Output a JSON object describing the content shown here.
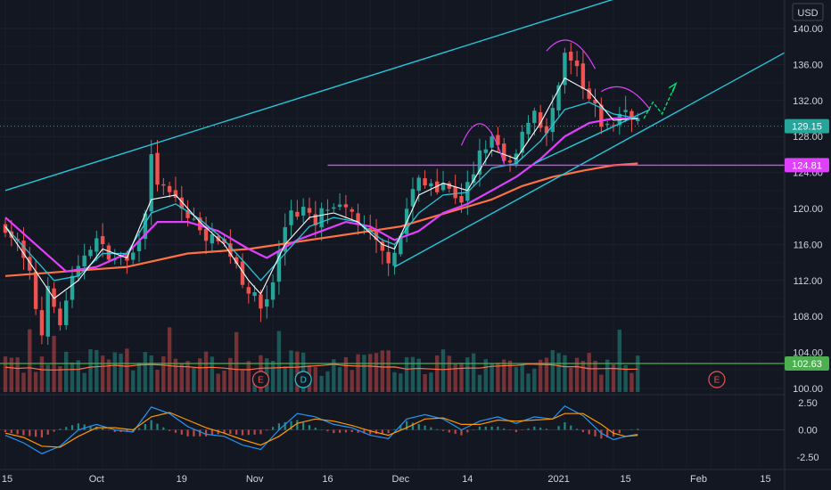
{
  "currency": "USD",
  "chart_data": {
    "type": "candlestick",
    "colors": {
      "background": "#131722",
      "grid": "#1e2230",
      "up": "#26a69a",
      "down": "#ef5350",
      "ema_short": "#ffffff",
      "ema_mid": "#26c6da",
      "sma_50": "#e040fb",
      "sma_200": "#ff7043",
      "trendline": "#26c6da",
      "horizontal_level": "#e040fb",
      "volume_level": "#4caf50",
      "volume_ma": "#ff7043",
      "macd_line": "#2196f3",
      "signal_line": "#ff9800",
      "projection": "#00e676"
    },
    "price_axis": {
      "ylim": [
        99,
        143
      ],
      "ticks": [
        "140.00",
        "136.00",
        "132.00",
        "128.00",
        "124.00",
        "120.00",
        "116.00",
        "112.00",
        "108.00",
        "104.00",
        "100.00"
      ],
      "tick_values": [
        140,
        136,
        132,
        128,
        124,
        120,
        116,
        112,
        108,
        104,
        100
      ]
    },
    "x_axis": {
      "xlim": [
        0,
        152
      ],
      "ticks": [
        {
          "label": "15",
          "index": 0
        },
        {
          "label": "Oct",
          "index": 15
        },
        {
          "label": "19",
          "index": 29
        },
        {
          "label": "Nov",
          "index": 41
        },
        {
          "label": "16",
          "index": 53
        },
        {
          "label": "Dec",
          "index": 65
        },
        {
          "label": "14",
          "index": 76
        },
        {
          "label": "2021",
          "index": 91
        },
        {
          "label": "15",
          "index": 102
        },
        {
          "label": "Feb",
          "index": 114
        },
        {
          "label": "15",
          "index": 125
        }
      ]
    },
    "price_path": [
      [
        0,
        118
      ],
      [
        2,
        116
      ],
      [
        4,
        112.5
      ],
      [
        5,
        109
      ],
      [
        6,
        106
      ],
      [
        7,
        112
      ],
      [
        8,
        108.5
      ],
      [
        9,
        107
      ],
      [
        10,
        110
      ],
      [
        11,
        112
      ],
      [
        12,
        113
      ],
      [
        13,
        115
      ],
      [
        14,
        116
      ],
      [
        15,
        116.5
      ],
      [
        16,
        115.5
      ],
      [
        17,
        115
      ],
      [
        18,
        114
      ],
      [
        19,
        115
      ],
      [
        20,
        114
      ],
      [
        21,
        115
      ],
      [
        22,
        117
      ],
      [
        23,
        120
      ],
      [
        24,
        125.5
      ],
      [
        25,
        123
      ],
      [
        26,
        122
      ],
      [
        27,
        121.5
      ],
      [
        28,
        121
      ],
      [
        29,
        120
      ],
      [
        30,
        119
      ],
      [
        31,
        118.5
      ],
      [
        32,
        118
      ],
      [
        33,
        117
      ],
      [
        34,
        116.5
      ],
      [
        35,
        117
      ],
      [
        36,
        116
      ],
      [
        37,
        115
      ],
      [
        38,
        114
      ],
      [
        39,
        112
      ],
      [
        40,
        111
      ],
      [
        41,
        110
      ],
      [
        42,
        109
      ],
      [
        43,
        110
      ],
      [
        44,
        112
      ],
      [
        45,
        115
      ],
      [
        46,
        118
      ],
      [
        47,
        120
      ],
      [
        48,
        119.5
      ],
      [
        49,
        120
      ],
      [
        50,
        119
      ],
      [
        51,
        118
      ],
      [
        52,
        119.5
      ],
      [
        53,
        120
      ],
      [
        54,
        119.5
      ],
      [
        55,
        120
      ],
      [
        56,
        119.5
      ],
      [
        57,
        119.5
      ],
      [
        58,
        118.5
      ],
      [
        59,
        117.5
      ],
      [
        60,
        117
      ],
      [
        61,
        116
      ],
      [
        62,
        115
      ],
      [
        63,
        114.5
      ],
      [
        64,
        115.5
      ],
      [
        65,
        117
      ],
      [
        66,
        120
      ],
      [
        67,
        122
      ],
      [
        68,
        123
      ],
      [
        69,
        122.5
      ],
      [
        70,
        123
      ],
      [
        71,
        122.5
      ],
      [
        72,
        123
      ],
      [
        73,
        122
      ],
      [
        74,
        121.5
      ],
      [
        75,
        121
      ],
      [
        76,
        122.5
      ],
      [
        77,
        123.5
      ],
      [
        78,
        126
      ],
      [
        79,
        127
      ],
      [
        80,
        127.5
      ],
      [
        81,
        127
      ],
      [
        82,
        125
      ],
      [
        83,
        124.5
      ],
      [
        84,
        126
      ],
      [
        85,
        128
      ],
      [
        86,
        130
      ],
      [
        87,
        131
      ],
      [
        88,
        129.5
      ],
      [
        89,
        128
      ],
      [
        90,
        131
      ],
      [
        91,
        133
      ],
      [
        92,
        137
      ],
      [
        93,
        136
      ],
      [
        94,
        135.5
      ],
      [
        95,
        133
      ],
      [
        96,
        132
      ],
      [
        97,
        131
      ],
      [
        98,
        129.5
      ],
      [
        99,
        129
      ],
      [
        100,
        129.5
      ],
      [
        101,
        130.5
      ],
      [
        102,
        131
      ],
      [
        103,
        130.5
      ],
      [
        104,
        129.8
      ]
    ],
    "ema_short": [
      [
        0,
        118
      ],
      [
        4,
        114
      ],
      [
        8,
        110
      ],
      [
        12,
        112
      ],
      [
        16,
        115.5
      ],
      [
        20,
        114.5
      ],
      [
        24,
        121
      ],
      [
        28,
        121.5
      ],
      [
        32,
        118.5
      ],
      [
        36,
        116
      ],
      [
        40,
        112
      ],
      [
        42,
        110.5
      ],
      [
        46,
        116
      ],
      [
        50,
        119
      ],
      [
        54,
        119.5
      ],
      [
        58,
        118.5
      ],
      [
        62,
        116
      ],
      [
        64,
        115.5
      ],
      [
        68,
        121.5
      ],
      [
        72,
        122.8
      ],
      [
        76,
        122
      ],
      [
        80,
        126.5
      ],
      [
        84,
        125.5
      ],
      [
        88,
        129.5
      ],
      [
        92,
        134.5
      ],
      [
        96,
        133
      ],
      [
        100,
        129.8
      ],
      [
        104,
        130
      ]
    ],
    "ema_mid": [
      [
        0,
        118
      ],
      [
        4,
        115
      ],
      [
        8,
        112
      ],
      [
        12,
        112.5
      ],
      [
        16,
        115
      ],
      [
        20,
        115
      ],
      [
        24,
        119.5
      ],
      [
        28,
        120.5
      ],
      [
        32,
        118.8
      ],
      [
        36,
        116.5
      ],
      [
        40,
        113.5
      ],
      [
        42,
        112
      ],
      [
        46,
        115
      ],
      [
        50,
        118
      ],
      [
        54,
        119
      ],
      [
        58,
        118.5
      ],
      [
        62,
        116.5
      ],
      [
        64,
        116
      ],
      [
        68,
        119.5
      ],
      [
        72,
        121.5
      ],
      [
        76,
        121.8
      ],
      [
        80,
        124.5
      ],
      [
        84,
        125
      ],
      [
        88,
        127.5
      ],
      [
        92,
        131
      ],
      [
        96,
        131.8
      ],
      [
        100,
        130.5
      ],
      [
        104,
        130
      ]
    ],
    "sma_50": [
      [
        0,
        119
      ],
      [
        5,
        116
      ],
      [
        10,
        113
      ],
      [
        15,
        113.5
      ],
      [
        20,
        115
      ],
      [
        25,
        118.5
      ],
      [
        30,
        118.5
      ],
      [
        35,
        117.5
      ],
      [
        40,
        115.5
      ],
      [
        43,
        114.5
      ],
      [
        48,
        116.5
      ],
      [
        52,
        117.5
      ],
      [
        56,
        118.5
      ],
      [
        60,
        118
      ],
      [
        64,
        116.5
      ],
      [
        68,
        117.5
      ],
      [
        72,
        119.5
      ],
      [
        76,
        120.5
      ],
      [
        80,
        122
      ],
      [
        84,
        123.5
      ],
      [
        88,
        125.5
      ],
      [
        92,
        128
      ],
      [
        96,
        129.5
      ],
      [
        100,
        130
      ],
      [
        104,
        130
      ]
    ],
    "sma_200": [
      [
        0,
        112.5
      ],
      [
        10,
        113
      ],
      [
        20,
        113.5
      ],
      [
        30,
        115
      ],
      [
        40,
        115.5
      ],
      [
        50,
        116.5
      ],
      [
        60,
        117.5
      ],
      [
        65,
        118
      ],
      [
        70,
        119
      ],
      [
        75,
        120
      ],
      [
        80,
        121
      ],
      [
        85,
        122.5
      ],
      [
        90,
        123.5
      ],
      [
        95,
        124.2
      ],
      [
        100,
        124.8
      ],
      [
        104,
        125
      ]
    ],
    "trendlines": [
      {
        "from": [
          0,
          122
        ],
        "to": [
          120,
          147.5
        ]
      },
      {
        "from": [
          64,
          113.5
        ],
        "to": [
          130,
          138
        ]
      },
      {
        "from": [
          87,
          125
        ],
        "to": [
          106,
          131
        ]
      }
    ],
    "horizontal_level": {
      "price": 124.81,
      "label": "124.81"
    },
    "last_price": {
      "price": 129.15,
      "label": "129.15"
    },
    "volume_level": {
      "label": "102.63"
    },
    "projection": [
      [
        105,
        130
      ],
      [
        106.5,
        131.8
      ],
      [
        108,
        130.5
      ],
      [
        110,
        133.5
      ]
    ],
    "event_markers": [
      {
        "label": "E",
        "index": 42,
        "color": "#ef5350"
      },
      {
        "label": "D",
        "index": 49,
        "color": "#26c6da"
      },
      {
        "label": "E",
        "index": 117,
        "color": "#ef5350"
      }
    ],
    "macd_axis": {
      "ylim": [
        -3.2,
        3.2
      ],
      "ticks": [
        "2.50",
        "0.00",
        "-2.50"
      ],
      "tick_values": [
        2.5,
        0,
        -2.5
      ]
    },
    "macd_line": [
      [
        0,
        -0.5
      ],
      [
        3,
        -1.2
      ],
      [
        6,
        -2.2
      ],
      [
        9,
        -1.5
      ],
      [
        12,
        0
      ],
      [
        15,
        0.5
      ],
      [
        18,
        0
      ],
      [
        21,
        -0.2
      ],
      [
        24,
        2.1
      ],
      [
        27,
        1.5
      ],
      [
        30,
        0.3
      ],
      [
        33,
        -0.4
      ],
      [
        36,
        -0.6
      ],
      [
        39,
        -1.4
      ],
      [
        42,
        -1.8
      ],
      [
        45,
        0
      ],
      [
        48,
        1.5
      ],
      [
        51,
        1.2
      ],
      [
        54,
        0.5
      ],
      [
        57,
        0.2
      ],
      [
        60,
        -0.5
      ],
      [
        63,
        -0.8
      ],
      [
        66,
        1
      ],
      [
        69,
        1.4
      ],
      [
        72,
        1
      ],
      [
        75,
        0
      ],
      [
        78,
        0.8
      ],
      [
        81,
        1.2
      ],
      [
        84,
        0.6
      ],
      [
        87,
        1.2
      ],
      [
        90,
        1
      ],
      [
        92,
        2.2
      ],
      [
        95,
        1.3
      ],
      [
        98,
        -0.3
      ],
      [
        100,
        -0.9
      ],
      [
        102,
        -0.6
      ],
      [
        104,
        -0.4
      ]
    ],
    "signal_line": [
      [
        0,
        -0.3
      ],
      [
        3,
        -0.7
      ],
      [
        6,
        -1.5
      ],
      [
        9,
        -1.6
      ],
      [
        12,
        -0.6
      ],
      [
        15,
        0.2
      ],
      [
        18,
        0.2
      ],
      [
        21,
        0
      ],
      [
        24,
        1.2
      ],
      [
        27,
        1.6
      ],
      [
        30,
        0.9
      ],
      [
        33,
        0.2
      ],
      [
        36,
        -0.3
      ],
      [
        39,
        -0.9
      ],
      [
        42,
        -1.4
      ],
      [
        45,
        -0.6
      ],
      [
        48,
        0.6
      ],
      [
        51,
        1
      ],
      [
        54,
        0.8
      ],
      [
        57,
        0.4
      ],
      [
        60,
        -0.1
      ],
      [
        63,
        -0.5
      ],
      [
        66,
        0.2
      ],
      [
        69,
        1
      ],
      [
        72,
        1.1
      ],
      [
        75,
        0.5
      ],
      [
        78,
        0.5
      ],
      [
        81,
        0.9
      ],
      [
        84,
        0.8
      ],
      [
        87,
        0.9
      ],
      [
        90,
        1
      ],
      [
        92,
        1.5
      ],
      [
        95,
        1.5
      ],
      [
        98,
        0.5
      ],
      [
        100,
        -0.3
      ],
      [
        102,
        -0.6
      ],
      [
        104,
        -0.5
      ]
    ]
  }
}
